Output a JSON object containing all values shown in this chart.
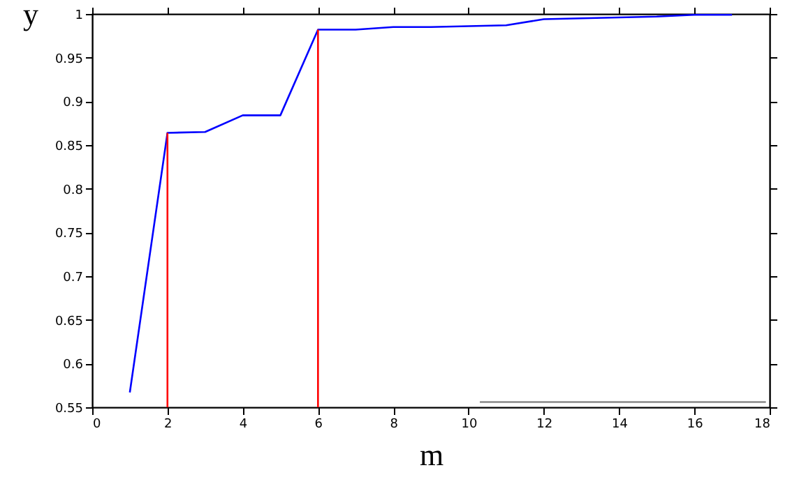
{
  "chart_data": {
    "type": "line",
    "xlabel": "m",
    "ylabel": "y",
    "series": [
      {
        "color": "#0000ff",
        "x": [
          1,
          2,
          3,
          4,
          5,
          6,
          7,
          8,
          9,
          10,
          11,
          12,
          13,
          14,
          15,
          16,
          17
        ],
        "values": [
          0.567,
          0.864,
          0.865,
          0.884,
          0.884,
          0.982,
          0.982,
          0.985,
          0.985,
          0.986,
          0.987,
          0.994,
          0.995,
          0.996,
          0.997,
          0.999,
          0.999
        ]
      },
      {
        "color": "#ff0000",
        "x": [
          2,
          2
        ],
        "values": [
          0.55,
          0.864
        ]
      },
      {
        "color": "#ff0000",
        "x": [
          6,
          6
        ],
        "values": [
          0.55,
          0.982
        ]
      },
      {
        "color": "#888888",
        "x": [
          10.3,
          17.9
        ],
        "values": [
          0.556,
          0.556
        ]
      }
    ],
    "xlim": [
      0,
      18
    ],
    "xticks": [
      0,
      2,
      4,
      6,
      8,
      10,
      12,
      14,
      16,
      18
    ],
    "ylim": [
      0.55,
      1
    ],
    "yticks": [
      0.55,
      0.6,
      0.65,
      0.7,
      0.75,
      0.8,
      0.85,
      0.9,
      0.95,
      1
    ],
    "grid": false,
    "marker": "none",
    "line_style": "solid"
  }
}
